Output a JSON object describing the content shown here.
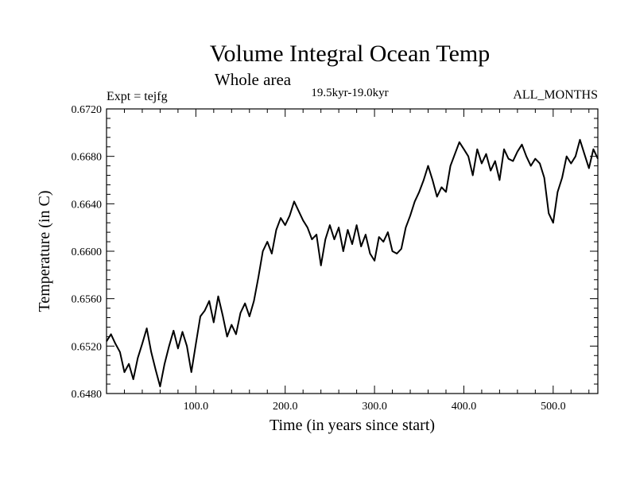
{
  "chart_data": {
    "type": "line",
    "title": "Volume Integral Ocean Temp",
    "subtitle": "Whole area",
    "period": "19.5kyr-19.0kyr",
    "experiment": "Expt = tejfg",
    "months": "ALL_MONTHS",
    "xlabel": "Time (in years since start)",
    "ylabel": "Temperature (in C)",
    "xlim": [
      0,
      550
    ],
    "ylim": [
      0.648,
      0.672
    ],
    "xticks": [
      {
        "value": 100,
        "label": "100.0"
      },
      {
        "value": 200,
        "label": "200.0"
      },
      {
        "value": 300,
        "label": "300.0"
      },
      {
        "value": 400,
        "label": "400.0"
      },
      {
        "value": 500,
        "label": "500.0"
      }
    ],
    "yticks": [
      {
        "value": 0.648,
        "label": "0.6480"
      },
      {
        "value": 0.652,
        "label": "0.6520"
      },
      {
        "value": 0.656,
        "label": "0.6560"
      },
      {
        "value": 0.66,
        "label": "0.6600"
      },
      {
        "value": 0.664,
        "label": "0.6640"
      },
      {
        "value": 0.668,
        "label": "0.6680"
      },
      {
        "value": 0.672,
        "label": "0.6720"
      }
    ],
    "line_color": "#000000",
    "series": [
      {
        "name": "tejfg",
        "x": [
          0,
          5,
          10,
          15,
          20,
          25,
          30,
          35,
          40,
          45,
          50,
          55,
          60,
          65,
          70,
          75,
          80,
          85,
          90,
          95,
          100,
          105,
          110,
          115,
          120,
          125,
          130,
          135,
          140,
          145,
          150,
          155,
          160,
          165,
          170,
          175,
          180,
          185,
          190,
          195,
          200,
          205,
          210,
          215,
          220,
          225,
          230,
          235,
          240,
          245,
          250,
          255,
          260,
          265,
          270,
          275,
          280,
          285,
          290,
          295,
          300,
          305,
          310,
          315,
          320,
          325,
          330,
          335,
          340,
          345,
          350,
          355,
          360,
          365,
          370,
          375,
          380,
          385,
          390,
          395,
          400,
          405,
          410,
          415,
          420,
          425,
          430,
          435,
          440,
          445,
          450,
          455,
          460,
          465,
          470,
          475,
          480,
          485,
          490,
          495,
          500,
          505,
          510,
          515,
          520,
          525,
          530,
          535,
          540,
          545,
          550
        ],
        "values": [
          0.6524,
          0.653,
          0.6522,
          0.6515,
          0.6498,
          0.6505,
          0.6492,
          0.651,
          0.6522,
          0.6535,
          0.6515,
          0.65,
          0.6486,
          0.6505,
          0.652,
          0.6533,
          0.6518,
          0.6532,
          0.652,
          0.6498,
          0.6522,
          0.6545,
          0.655,
          0.6558,
          0.654,
          0.6562,
          0.6546,
          0.6528,
          0.6538,
          0.653,
          0.6548,
          0.6556,
          0.6545,
          0.6558,
          0.6578,
          0.66,
          0.6608,
          0.6598,
          0.6618,
          0.6628,
          0.6622,
          0.663,
          0.6642,
          0.6634,
          0.6626,
          0.662,
          0.661,
          0.6614,
          0.6588,
          0.661,
          0.6622,
          0.661,
          0.662,
          0.66,
          0.6618,
          0.6606,
          0.6622,
          0.6604,
          0.6614,
          0.6598,
          0.6592,
          0.6612,
          0.6608,
          0.6616,
          0.66,
          0.6598,
          0.6602,
          0.662,
          0.663,
          0.6642,
          0.665,
          0.666,
          0.6672,
          0.666,
          0.6646,
          0.6654,
          0.665,
          0.6672,
          0.6682,
          0.6692,
          0.6686,
          0.668,
          0.6664,
          0.6686,
          0.6674,
          0.6682,
          0.6668,
          0.6676,
          0.666,
          0.6686,
          0.6678,
          0.6676,
          0.6684,
          0.669,
          0.668,
          0.6672,
          0.6678,
          0.6674,
          0.6662,
          0.6632,
          0.6624,
          0.665,
          0.6662,
          0.668,
          0.6674,
          0.668,
          0.6694,
          0.6682,
          0.667,
          0.6686,
          0.6678
        ]
      }
    ]
  }
}
